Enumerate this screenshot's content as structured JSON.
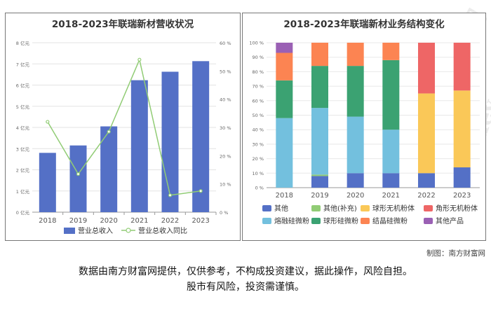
{
  "watermark": {
    "brand_cn": "南方财富网",
    "brand_en": "southmoney.com"
  },
  "credit": "制图：南方财富网",
  "disclaimer": [
    "数据由南方财富网提供，仅供参考，不构成投资建议，据此操作，风险自担。",
    "股市有风险，投资需谨慎。"
  ],
  "colors": {
    "revenue_bar": "#5470c6",
    "growth_line": "#91cc75",
    "other": "#5470c6",
    "other_supplement": "#91cc75",
    "spherical_inorganic": "#fac858",
    "angular_inorganic": "#ee6666",
    "fused_silica": "#73c0de",
    "spherical_silica": "#3ba272",
    "crystalline_silica": "#fc8452",
    "other_products": "#9a60b4"
  },
  "chart_data": [
    {
      "type": "bar+line",
      "title": "2018-2023年联瑞新材营收状况",
      "categories": [
        "2018",
        "2019",
        "2020",
        "2021",
        "2022",
        "2023"
      ],
      "series": [
        {
          "name": "营业总收入",
          "type": "bar",
          "axis": "left",
          "values": [
            2.8,
            3.15,
            4.05,
            6.23,
            6.63,
            7.13
          ]
        },
        {
          "name": "营业总收入同比",
          "type": "line",
          "axis": "right",
          "values": [
            32,
            13.5,
            28.5,
            54,
            6,
            7.5
          ]
        }
      ],
      "y_left": {
        "min": 0,
        "max": 8,
        "step": 1,
        "unit": "亿元",
        "ticks": [
          "0 亿元",
          "1 亿元",
          "2 亿元",
          "3 亿元",
          "4 亿元",
          "5 亿元",
          "6 亿元",
          "7 亿元",
          "8 亿元"
        ]
      },
      "y_right": {
        "min": 0,
        "max": 60,
        "step": 10,
        "ticks": [
          "0 %",
          "10 %",
          "20 %",
          "30 %",
          "40 %",
          "50 %",
          "60 %"
        ]
      },
      "legend": [
        "营业总收入",
        "营业总收入同比"
      ],
      "legend_position": "bottom"
    },
    {
      "type": "stacked-bar",
      "title": "2018-2023年联瑞新材业务结构变化",
      "categories": [
        "2018",
        "2019",
        "2020",
        "2021",
        "2022",
        "2023"
      ],
      "series": [
        {
          "name": "其他",
          "color_key": "other",
          "values": [
            0,
            8,
            10,
            10,
            10,
            14
          ]
        },
        {
          "name": "其他(补充)",
          "color_key": "other_supplement",
          "values": [
            0,
            1,
            0,
            0,
            0,
            0
          ]
        },
        {
          "name": "球形无机粉体",
          "color_key": "spherical_inorganic",
          "values": [
            0,
            0,
            0,
            0,
            55,
            53
          ]
        },
        {
          "name": "角形无机粉体",
          "color_key": "angular_inorganic",
          "values": [
            0,
            0,
            0,
            0,
            35,
            33
          ]
        },
        {
          "name": "熔融硅微粉",
          "color_key": "fused_silica",
          "values": [
            48,
            46,
            39,
            30,
            0,
            0
          ]
        },
        {
          "name": "球形硅微粉",
          "color_key": "spherical_silica",
          "values": [
            26,
            29,
            35,
            48,
            0,
            0
          ]
        },
        {
          "name": "结晶硅微粉",
          "color_key": "crystalline_silica",
          "values": [
            19,
            16,
            16,
            12,
            0,
            0
          ]
        },
        {
          "name": "其他产品",
          "color_key": "other_products",
          "values": [
            7,
            0,
            0,
            0,
            0,
            0
          ]
        }
      ],
      "y": {
        "min": 0,
        "max": 100,
        "step": 10,
        "ticks": [
          "0 %",
          "10 %",
          "20 %",
          "30 %",
          "40 %",
          "50 %",
          "60 %",
          "70 %",
          "80 %",
          "90 %",
          "100 %"
        ]
      },
      "legend": [
        "其他",
        "其他(补充)",
        "球形无机粉体",
        "角形无机粉体",
        "熔融硅微粉",
        "球形硅微粉",
        "结晶硅微粉",
        "其他产品"
      ],
      "legend_position": "bottom"
    }
  ]
}
